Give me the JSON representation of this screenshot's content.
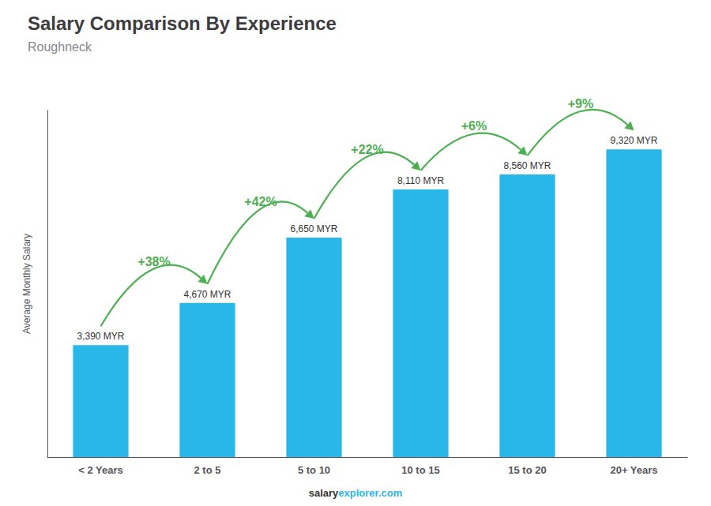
{
  "chart_data": {
    "type": "bar",
    "title": "Salary Comparison By Experience",
    "subtitle": "Roughneck",
    "ylabel": "Average Monthly Salary",
    "categories": [
      "< 2 Years",
      "2 to 5",
      "5 to 10",
      "10 to 15",
      "15 to 20",
      "20+ Years"
    ],
    "values": [
      3390,
      4670,
      6650,
      8110,
      8560,
      9320
    ],
    "value_labels": [
      "3,390 MYR",
      "4,670 MYR",
      "6,650 MYR",
      "8,110 MYR",
      "8,560 MYR",
      "9,320 MYR"
    ],
    "data_labels": true,
    "color": "#29B6E8",
    "ylim": [
      0,
      10500
    ],
    "tick_labels": "x",
    "grid": false,
    "annotations": [
      "+38%",
      "+42%",
      "+22%",
      "+6%",
      "+9%"
    ],
    "footer": [
      "salary",
      "explorer.com"
    ]
  }
}
